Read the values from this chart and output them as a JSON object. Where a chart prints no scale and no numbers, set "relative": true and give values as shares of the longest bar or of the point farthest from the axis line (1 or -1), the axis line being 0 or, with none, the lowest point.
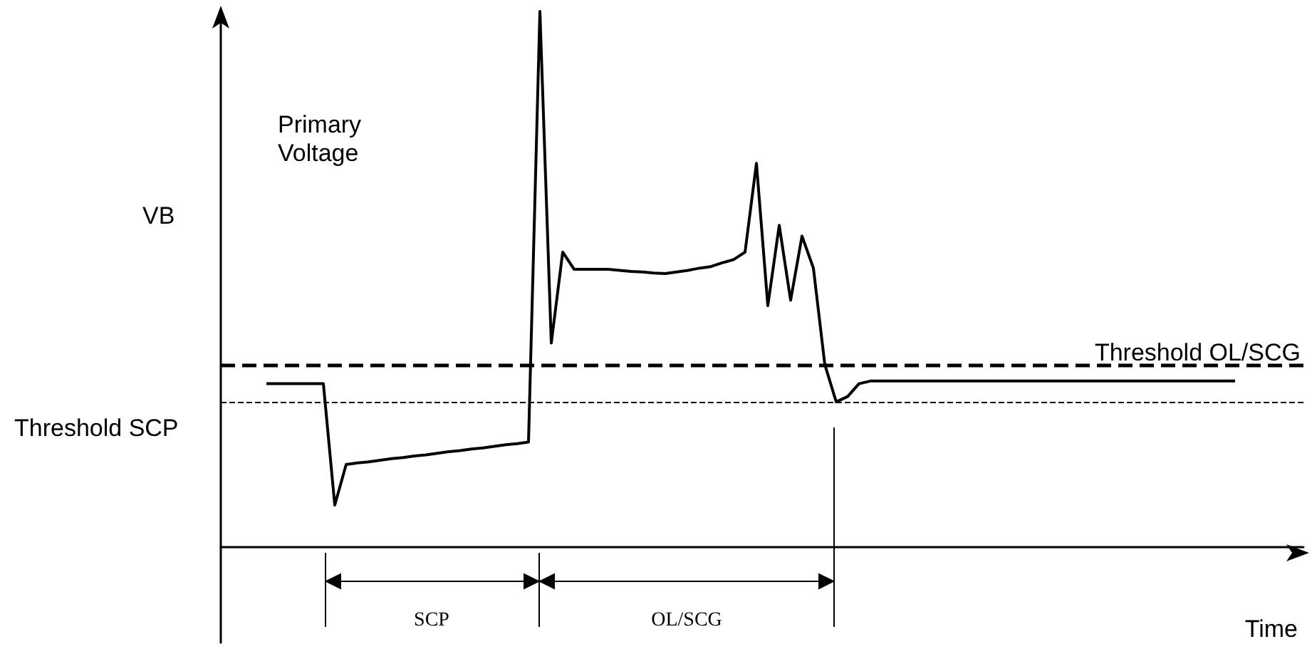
{
  "chart_data": {
    "type": "line",
    "relative": true,
    "ylabel": "Primary Voltage",
    "xlabel": "Time",
    "marker": "none",
    "line_style": "solid",
    "annotations": [
      "VB",
      "SCP",
      "OL/SCG"
    ],
    "categories": [
      null,
      null,
      null,
      null,
      null,
      null,
      null,
      null,
      null,
      null,
      null,
      null,
      null,
      null,
      null,
      null,
      null,
      null,
      null,
      null,
      null,
      null,
      null,
      null,
      null,
      null,
      null,
      null,
      null,
      null,
      null,
      null,
      null,
      null,
      null,
      null,
      null,
      null,
      null,
      null,
      null,
      null,
      null,
      null,
      null,
      null,
      null,
      null,
      null,
      null,
      null,
      null,
      null,
      null,
      null,
      null,
      null,
      null,
      null,
      null,
      null,
      null,
      null,
      null,
      null,
      null,
      null,
      null,
      null,
      null,
      null,
      null,
      null,
      null,
      null,
      null,
      null,
      null,
      null,
      null,
      null,
      null,
      null,
      null,
      null,
      null,
      null,
      null,
      null,
      null,
      null,
      null,
      null,
      null,
      null,
      null
    ],
    "series": [
      {
        "color": "#000000",
        "values": [
          null,
          null,
          null,
          null,
          0.304,
          0.304,
          0.304,
          0.304,
          0.304,
          0.304,
          0.077,
          0.153,
          0.156,
          0.158,
          0.161,
          0.164,
          0.166,
          0.169,
          0.171,
          0.174,
          0.177,
          0.179,
          0.182,
          0.184,
          0.187,
          0.19,
          0.192,
          0.195,
          1,
          0.38,
          0.55,
          0.518,
          0.518,
          0.518,
          0.518,
          0.516,
          0.514,
          0.513,
          0.511,
          0.51,
          0.513,
          0.516,
          0.52,
          0.523,
          0.53,
          0.536,
          0.55,
          0.716,
          0.45,
          0.6,
          0.46,
          0.58,
          0.52,
          0.34,
          0.27,
          0.28,
          0.304,
          0.309,
          0.309,
          0.309,
          0.309,
          0.309,
          0.309,
          0.309,
          0.309,
          0.309,
          0.309,
          0.309,
          0.309,
          0.309,
          0.309,
          0.309,
          0.309,
          0.309,
          0.309,
          0.309,
          0.309,
          0.309,
          0.309,
          0.309,
          0.309,
          0.309,
          0.309,
          0.309,
          0.309,
          0.309,
          0.309,
          0.309,
          0.309,
          0.309,
          null,
          null,
          null,
          null,
          null,
          null
        ]
      }
    ],
    "ref_lines": [
      {
        "axis": "y",
        "value": 0.271,
        "label": "Threshold SCP",
        "line_style": "dashed"
      },
      {
        "axis": "y",
        "value": 0.338,
        "label": "Threshold OL/SCG",
        "line_style": "dashed"
      }
    ]
  }
}
